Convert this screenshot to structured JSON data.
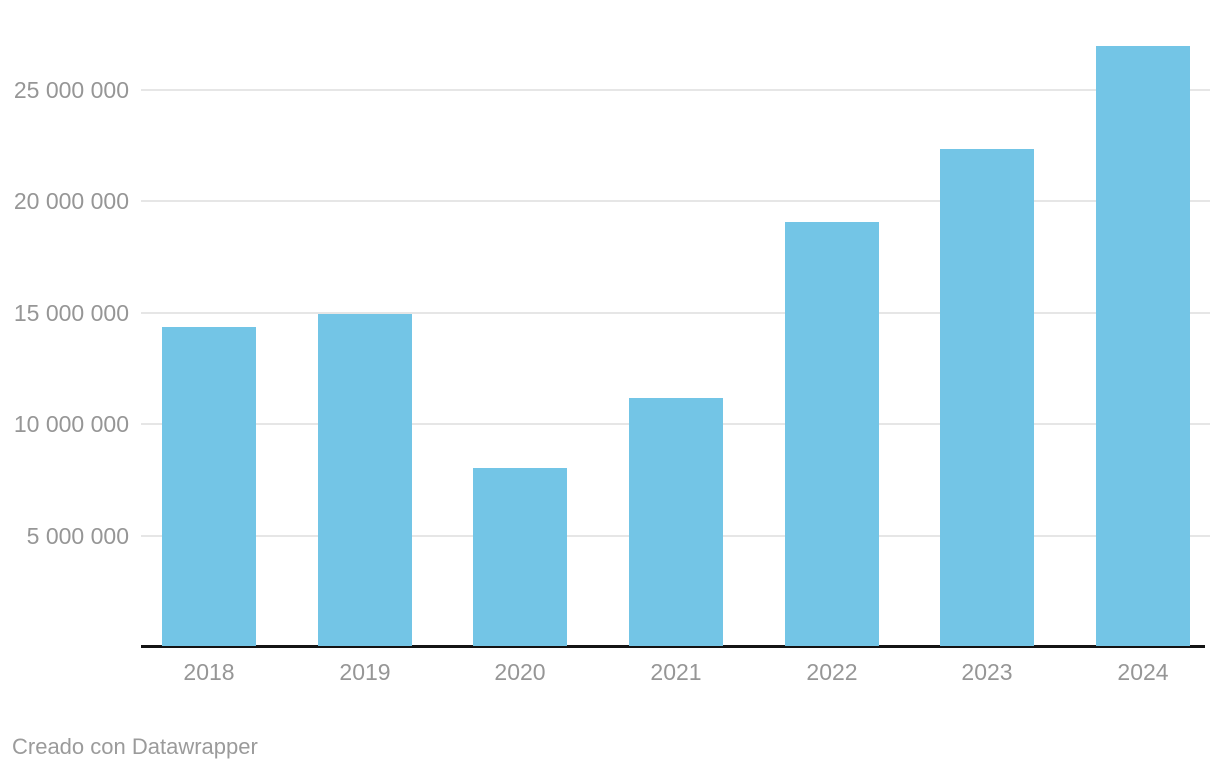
{
  "footer": {
    "credit": "Creado con Datawrapper"
  },
  "colors": {
    "bar": "#73c5e6",
    "gridline": "#e6e6e6",
    "axis_line": "#141414",
    "tick_label": "#969696",
    "credit_text": "#9b9b9b",
    "background": "#ffffff"
  },
  "chart_data": {
    "type": "bar",
    "title": "",
    "xlabel": "",
    "ylabel": "",
    "categories": [
      "2018",
      "2019",
      "2020",
      "2021",
      "2022",
      "2023",
      "2024"
    ],
    "values": [
      14300000,
      14900000,
      8000000,
      11100000,
      19000000,
      22300000,
      26900000
    ],
    "ylim": [
      0,
      27500000
    ],
    "yticks": [
      {
        "value": 5000000,
        "label": "5 000 000"
      },
      {
        "value": 10000000,
        "label": "10 000 000"
      },
      {
        "value": 15000000,
        "label": "15 000 000"
      },
      {
        "value": 20000000,
        "label": "20 000 000"
      },
      {
        "value": 25000000,
        "label": "25 000 000"
      }
    ],
    "grid": true,
    "legend": false
  }
}
